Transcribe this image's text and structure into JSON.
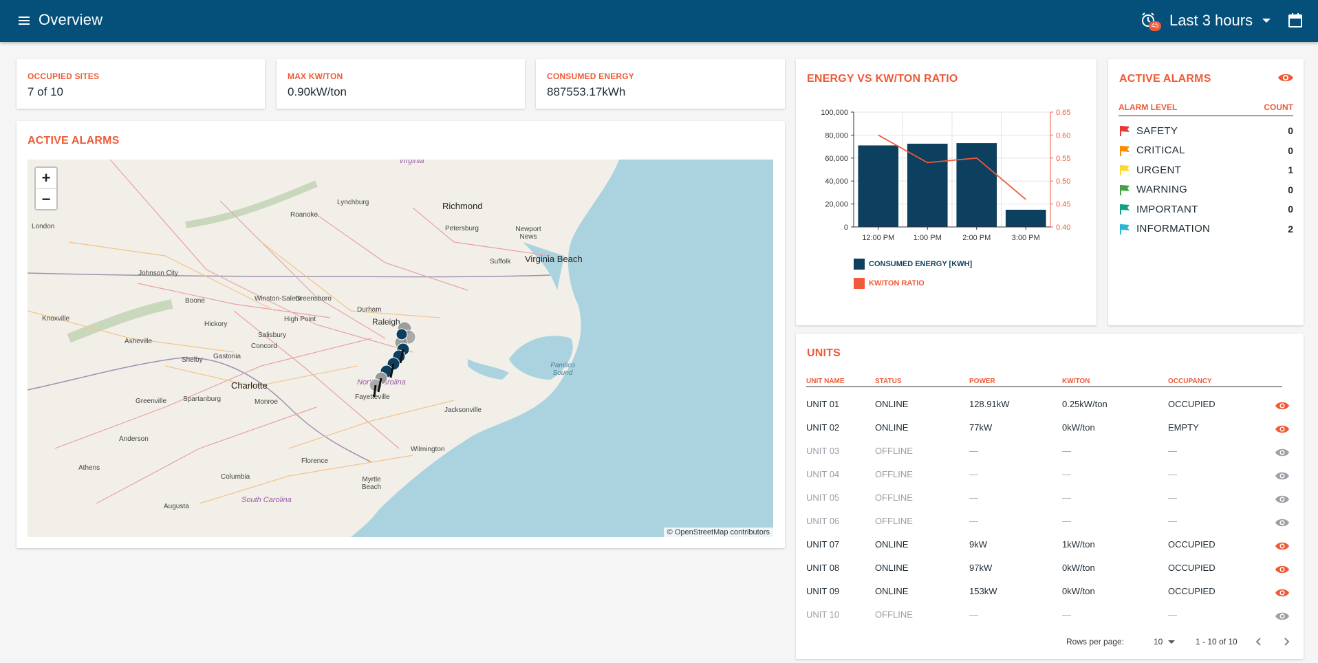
{
  "header": {
    "title": "Overview",
    "alarm_badge": "45",
    "time_range": "Last 3 hours"
  },
  "stats": [
    {
      "label": "OCCUPIED SITES",
      "value": "7 of 10"
    },
    {
      "label": "MAX KW/TON",
      "value": "0.90kW/ton"
    },
    {
      "label": "CONSUMED ENERGY",
      "value": "887553.17kWh"
    }
  ],
  "map": {
    "title": "ACTIVE ALARMS",
    "zoom_in": "+",
    "zoom_out": "−",
    "attribution": "© OpenStreetMap contributors",
    "labels": [
      "Virginia",
      "Richmond",
      "Lynchburg",
      "Roanoke",
      "Petersburg",
      "Newport News",
      "Virginia Beach",
      "Suffolk",
      "London",
      "Johnson City",
      "Boone",
      "Winston-Salem",
      "Greensboro",
      "Durham",
      "Raleigh",
      "Knoxville",
      "Hickory",
      "High Point",
      "Salisbury",
      "Asheville",
      "Concord",
      "Shelby",
      "Gastonia",
      "Charlotte",
      "Monroe",
      "North Carolina",
      "Fayetteville",
      "Greenville",
      "Spartanburg",
      "Jacksonville",
      "Anderson",
      "Wilmington",
      "Florence",
      "Athens",
      "Columbia",
      "Myrtle Beach",
      "South Carolina",
      "Augusta",
      "Pamlico Sound"
    ]
  },
  "chart_data": {
    "type": "bar",
    "title": "ENERGY VS KW/TON RATIO",
    "categories": [
      "12:00 PM",
      "1:00 PM",
      "2:00 PM",
      "3:00 PM"
    ],
    "series": [
      {
        "name": "CONSUMED ENERGY [KWH]",
        "type": "bar",
        "axis": "left",
        "color": "#0d3f5e",
        "values": [
          71000,
          72500,
          73000,
          15000
        ]
      },
      {
        "name": "KW/TON RATIO",
        "type": "line",
        "axis": "right",
        "color": "#f05a3a",
        "values": [
          0.6,
          0.54,
          0.55,
          0.46
        ]
      }
    ],
    "ylim": [
      0,
      100000
    ],
    "y2lim": [
      0.4,
      0.65
    ],
    "yticks": [
      "0",
      "20,000",
      "40,000",
      "60,000",
      "80,000",
      "100,000"
    ],
    "y2ticks": [
      "0.40",
      "0.45",
      "0.50",
      "0.55",
      "0.60",
      "0.65"
    ],
    "grid": true,
    "legend": "bottom"
  },
  "alarms": {
    "title": "ACTIVE ALARMS",
    "col_level": "ALARM LEVEL",
    "col_count": "COUNT",
    "rows": [
      {
        "level": "SAFETY",
        "count": "0",
        "color": "#e53935"
      },
      {
        "level": "CRITICAL",
        "count": "0",
        "color": "#fb8c00"
      },
      {
        "level": "URGENT",
        "count": "1",
        "color": "#fdd835"
      },
      {
        "level": "WARNING",
        "count": "0",
        "color": "#43a047"
      },
      {
        "level": "IMPORTANT",
        "count": "0",
        "color": "#12a085"
      },
      {
        "level": "INFORMATION",
        "count": "2",
        "color": "#29b6d6"
      }
    ]
  },
  "units": {
    "title": "UNITS",
    "columns": [
      "UNIT NAME",
      "STATUS",
      "POWER",
      "KW/TON",
      "OCCUPANCY"
    ],
    "rows": [
      {
        "name": "UNIT 01",
        "status": "ONLINE",
        "power": "128.91kW",
        "kwton": "0.25kW/ton",
        "occupancy": "OCCUPIED"
      },
      {
        "name": "UNIT 02",
        "status": "ONLINE",
        "power": "77kW",
        "kwton": "0kW/ton",
        "occupancy": "EMPTY"
      },
      {
        "name": "UNIT 03",
        "status": "OFFLINE",
        "power": "—",
        "kwton": "—",
        "occupancy": "—"
      },
      {
        "name": "UNIT 04",
        "status": "OFFLINE",
        "power": "—",
        "kwton": "—",
        "occupancy": "—"
      },
      {
        "name": "UNIT 05",
        "status": "OFFLINE",
        "power": "—",
        "kwton": "—",
        "occupancy": "—"
      },
      {
        "name": "UNIT 06",
        "status": "OFFLINE",
        "power": "—",
        "kwton": "—",
        "occupancy": "—"
      },
      {
        "name": "UNIT 07",
        "status": "ONLINE",
        "power": "9kW",
        "kwton": "1kW/ton",
        "occupancy": "OCCUPIED"
      },
      {
        "name": "UNIT 08",
        "status": "ONLINE",
        "power": "97kW",
        "kwton": "0kW/ton",
        "occupancy": "OCCUPIED"
      },
      {
        "name": "UNIT 09",
        "status": "ONLINE",
        "power": "153kW",
        "kwton": "0kW/ton",
        "occupancy": "OCCUPIED"
      },
      {
        "name": "UNIT 10",
        "status": "OFFLINE",
        "power": "—",
        "kwton": "—",
        "occupancy": "—"
      }
    ],
    "rows_per_page_label": "Rows per page:",
    "rows_per_page": "10",
    "range": "1 - 10 of 10"
  },
  "colors": {
    "accent": "#ee5a36",
    "header": "#04507a",
    "eye_online": "#ee5a36",
    "eye_offline": "#9aa0a6"
  }
}
